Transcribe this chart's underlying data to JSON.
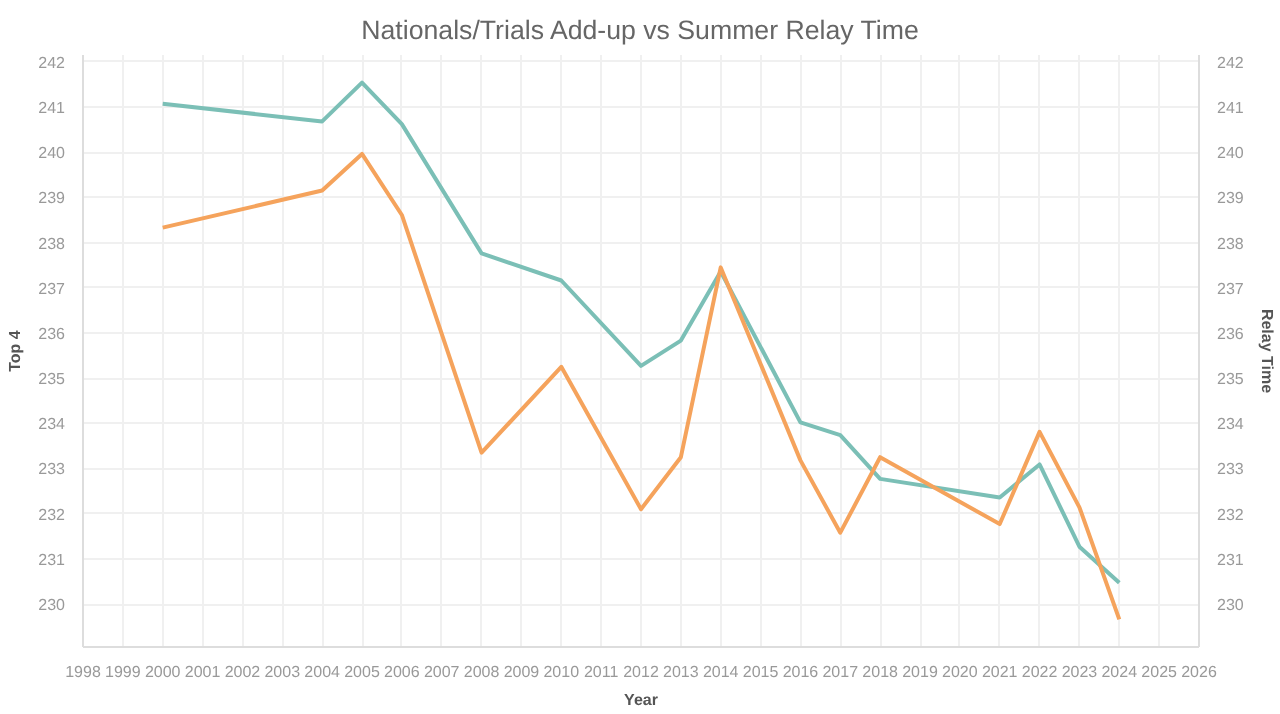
{
  "chart_data": {
    "type": "line",
    "title": "Nationals/Trials Add-up vs Summer Relay Time",
    "xlabel": "Year",
    "ylabel": "Top 4",
    "y2label": "Relay Time",
    "x": [
      2000,
      2004,
      2005,
      2006,
      2008,
      2010,
      2012,
      2013,
      2014,
      2016,
      2017,
      2018,
      2021,
      2022,
      2023,
      2024
    ],
    "series": [
      {
        "color": "#7bbfb6",
        "values": [
          241.07,
          240.68,
          241.54,
          240.62,
          237.76,
          237.16,
          235.27,
          235.83,
          237.36,
          234.02,
          233.74,
          232.77,
          232.36,
          233.09,
          231.27,
          230.47
        ]
      },
      {
        "color": "#f5a35c",
        "values": [
          238.33,
          239.15,
          239.96,
          238.61,
          233.35,
          235.25,
          232.1,
          233.25,
          237.45,
          233.18,
          231.58,
          233.25,
          231.77,
          233.81,
          232.14,
          229.66
        ]
      }
    ],
    "xlim": [
      1998,
      2026
    ],
    "xticks": [
      1998,
      1999,
      2000,
      2001,
      2002,
      2003,
      2004,
      2005,
      2006,
      2007,
      2008,
      2009,
      2010,
      2011,
      2012,
      2013,
      2014,
      2015,
      2016,
      2017,
      2018,
      2019,
      2020,
      2021,
      2022,
      2023,
      2024,
      2025,
      2026
    ],
    "ylim": [
      229.05,
      242.15
    ],
    "yticks": [
      230,
      231,
      232,
      233,
      234,
      235,
      236,
      237,
      238,
      239,
      240,
      241,
      242
    ],
    "y2lim": [
      229.05,
      242.15
    ],
    "y2ticks": [
      230,
      231,
      232,
      233,
      234,
      235,
      236,
      237,
      238,
      239,
      240,
      241,
      242
    ],
    "grid": true,
    "line_style": "solid",
    "marker": "none"
  }
}
